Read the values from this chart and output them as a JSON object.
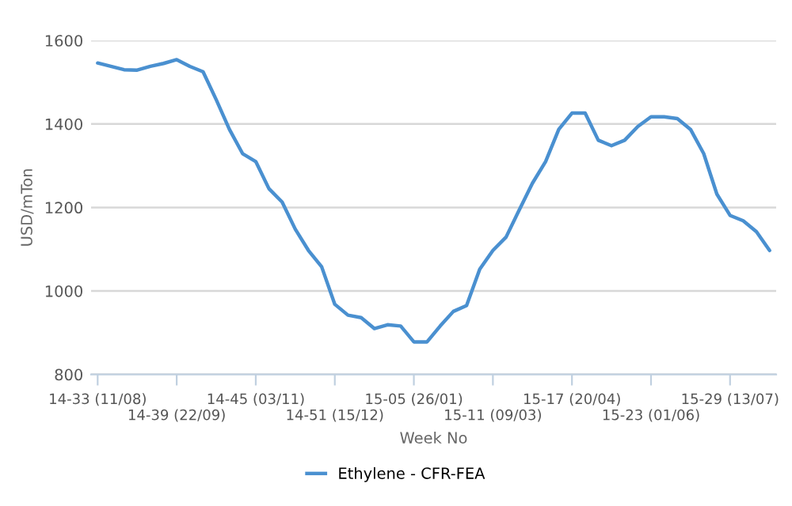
{
  "chart_data": {
    "type": "line",
    "xlabel": "Week No",
    "ylabel": "USD/mTon",
    "categories": [
      "14-33 (11/08)",
      null,
      null,
      null,
      null,
      null,
      "14-39 (22/09)",
      null,
      null,
      null,
      null,
      null,
      "14-45 (03/11)",
      null,
      null,
      null,
      null,
      null,
      "14-51 (15/12)",
      null,
      null,
      null,
      null,
      null,
      "15-05 (26/01)",
      null,
      null,
      null,
      null,
      null,
      "15-11 (09/03)",
      null,
      null,
      null,
      null,
      null,
      "15-17 (20/04)",
      null,
      null,
      null,
      null,
      null,
      "15-23 (01/06)",
      null,
      null,
      null,
      null,
      null,
      "15-29 (13/07)",
      null,
      null,
      null
    ],
    "series": [
      {
        "name": "Ethylene - CFR-FEA",
        "color": "#4a90d0",
        "values": [
          1546,
          1538,
          1530,
          1529,
          1538,
          1545,
          1554,
          1538,
          1525,
          1458,
          1387,
          1329,
          1310,
          1245,
          1213,
          1148,
          1097,
          1058,
          968,
          942,
          936,
          910,
          919,
          916,
          878,
          878,
          916,
          951,
          965,
          1052,
          1097,
          1129,
          1194,
          1258,
          1310,
          1387,
          1426,
          1426,
          1361,
          1348,
          1361,
          1394,
          1417,
          1417,
          1413,
          1387,
          1329,
          1232,
          1181,
          1168,
          1142,
          1097
        ]
      }
    ],
    "ylim": [
      800,
      1600
    ],
    "yticks": [
      800,
      1000,
      1200,
      1400,
      1600
    ],
    "grid": "y",
    "legend": "bottom",
    "marker": "none",
    "line_style": "solid"
  }
}
